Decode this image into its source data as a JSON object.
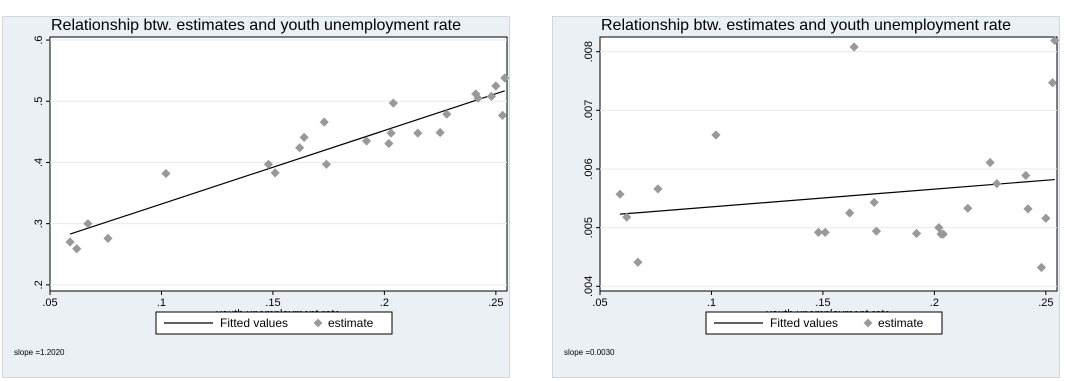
{
  "chart_data": [
    {
      "type": "scatter",
      "title": "Relationship btw. estimates and youth unemployment rate",
      "xlabel": "youth unemployment rate",
      "ylabel": "",
      "xlim": [
        0.05,
        0.255
      ],
      "ylim": [
        0.19,
        0.605
      ],
      "xticks": [
        0.05,
        0.1,
        0.15,
        0.2,
        0.25
      ],
      "xtick_labels": [
        ".05",
        ".1",
        ".15",
        ".2",
        ".25"
      ],
      "yticks": [
        0.2,
        0.3,
        0.4,
        0.5,
        0.6
      ],
      "ytick_labels": [
        ".2",
        ".3",
        ".4",
        ".5",
        ".6"
      ],
      "grid": true,
      "legend_position": "bottom",
      "legend": [
        "Fitted values",
        "estimate"
      ],
      "note": "slope =1.2020",
      "series": [
        {
          "name": "estimate",
          "marker": "diamond",
          "color": "#999999",
          "points": [
            [
              0.059,
              0.27
            ],
            [
              0.062,
              0.259
            ],
            [
              0.067,
              0.3
            ],
            [
              0.076,
              0.276
            ],
            [
              0.102,
              0.382
            ],
            [
              0.148,
              0.397
            ],
            [
              0.151,
              0.383
            ],
            [
              0.162,
              0.424
            ],
            [
              0.164,
              0.441
            ],
            [
              0.173,
              0.466
            ],
            [
              0.174,
              0.397
            ],
            [
              0.192,
              0.435
            ],
            [
              0.202,
              0.431
            ],
            [
              0.203,
              0.448
            ],
            [
              0.204,
              0.497
            ],
            [
              0.215,
              0.448
            ],
            [
              0.225,
              0.449
            ],
            [
              0.228,
              0.479
            ],
            [
              0.241,
              0.512
            ],
            [
              0.242,
              0.505
            ],
            [
              0.248,
              0.508
            ],
            [
              0.25,
              0.525
            ],
            [
              0.253,
              0.477
            ],
            [
              0.254,
              0.538
            ]
          ]
        },
        {
          "name": "Fitted values",
          "type": "line",
          "color": "#000000",
          "points": [
            [
              0.059,
              0.283
            ],
            [
              0.254,
              0.517
            ]
          ]
        }
      ]
    },
    {
      "type": "scatter",
      "title": "Relationship btw. estimates and youth unemployment rate",
      "xlabel": "youth unemployment rate",
      "ylabel": "",
      "xlim": [
        0.05,
        0.255
      ],
      "ylim": [
        0.00392,
        0.00825
      ],
      "xticks": [
        0.05,
        0.1,
        0.15,
        0.2,
        0.25
      ],
      "xtick_labels": [
        ".05",
        ".1",
        ".15",
        ".2",
        ".25"
      ],
      "yticks": [
        0.004,
        0.005,
        0.006,
        0.007,
        0.008
      ],
      "ytick_labels": [
        ".004",
        ".005",
        ".006",
        ".007",
        ".008"
      ],
      "grid": true,
      "legend_position": "bottom",
      "legend": [
        "Fitted values",
        "estimate"
      ],
      "note": "slope =0.0030",
      "series": [
        {
          "name": "estimate",
          "marker": "diamond",
          "color": "#999999",
          "points": [
            [
              0.059,
              0.00557
            ],
            [
              0.062,
              0.00518
            ],
            [
              0.067,
              0.00441
            ],
            [
              0.076,
              0.00566
            ],
            [
              0.102,
              0.00658
            ],
            [
              0.148,
              0.00492
            ],
            [
              0.151,
              0.00492
            ],
            [
              0.162,
              0.00525
            ],
            [
              0.164,
              0.00808
            ],
            [
              0.173,
              0.00543
            ],
            [
              0.174,
              0.00494
            ],
            [
              0.192,
              0.0049
            ],
            [
              0.202,
              0.005
            ],
            [
              0.203,
              0.00489
            ],
            [
              0.204,
              0.00489
            ],
            [
              0.215,
              0.00533
            ],
            [
              0.225,
              0.00611
            ],
            [
              0.228,
              0.00575
            ],
            [
              0.241,
              0.00589
            ],
            [
              0.242,
              0.00532
            ],
            [
              0.248,
              0.00432
            ],
            [
              0.25,
              0.00516
            ],
            [
              0.253,
              0.00747
            ],
            [
              0.254,
              0.00819
            ]
          ]
        },
        {
          "name": "Fitted values",
          "type": "line",
          "color": "#000000",
          "points": [
            [
              0.059,
              0.00523
            ],
            [
              0.254,
              0.00582
            ]
          ]
        }
      ]
    }
  ]
}
